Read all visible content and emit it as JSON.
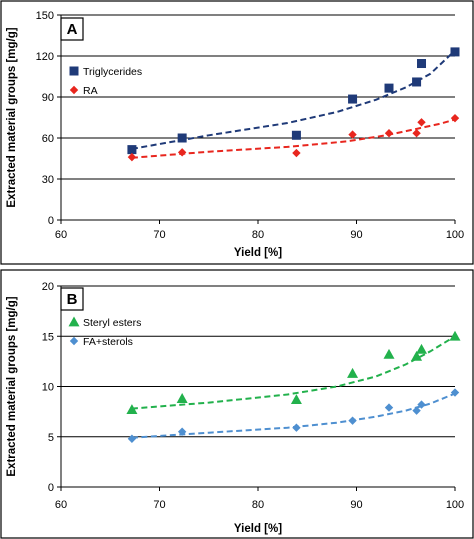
{
  "chart_data": [
    {
      "type": "scatter",
      "panel_label": "A",
      "xlabel": "Yield [%]",
      "ylabel": "Extracted material groups [mg/g]",
      "xlim": [
        60,
        100
      ],
      "ylim": [
        0,
        150
      ],
      "xticks": [
        60,
        70,
        80,
        90,
        100
      ],
      "yticks": [
        0,
        30,
        60,
        90,
        120,
        150
      ],
      "grid": "horizontal",
      "legend": "top-left",
      "series": [
        {
          "name": "Triglycerides",
          "marker": "square",
          "color": "#1f3a78",
          "x": [
            67.2,
            72.3,
            83.9,
            89.6,
            93.3,
            96.1,
            96.6,
            100
          ],
          "y": [
            51.5,
            60,
            62,
            88.5,
            96.5,
            101,
            114.5,
            123
          ],
          "trend": [
            [
              67.2,
              52
            ],
            [
              75,
              62
            ],
            [
              83,
              71
            ],
            [
              88,
              79
            ],
            [
              92,
              88
            ],
            [
              95,
              97
            ],
            [
              97.5,
              107
            ],
            [
              100,
              124
            ]
          ]
        },
        {
          "name": "RA",
          "marker": "diamond",
          "color": "#e8261e",
          "x": [
            67.2,
            72.3,
            83.9,
            89.6,
            93.3,
            96.1,
            96.6,
            100
          ],
          "y": [
            46,
            49.5,
            49,
            62.5,
            63.5,
            63.5,
            71.5,
            74.5
          ],
          "trend": [
            [
              67.2,
              45.5
            ],
            [
              75,
              50
            ],
            [
              83,
              53.5
            ],
            [
              89,
              57.5
            ],
            [
              93,
              62
            ],
            [
              96,
              66.5
            ],
            [
              98.5,
              70.5
            ],
            [
              100,
              73.5
            ]
          ]
        }
      ]
    },
    {
      "type": "scatter",
      "panel_label": "B",
      "xlabel": "Yield [%]",
      "ylabel": "Extracted material groups [mg/g]",
      "xlim": [
        60,
        100
      ],
      "ylim": [
        0,
        20
      ],
      "xticks": [
        60,
        70,
        80,
        90,
        100
      ],
      "yticks": [
        0,
        5,
        10,
        15,
        20
      ],
      "grid": "horizontal",
      "legend": "top-left",
      "series": [
        {
          "name": "Steryl esters",
          "marker": "triangle",
          "color": "#22b14c",
          "x": [
            67.2,
            72.3,
            83.9,
            89.6,
            93.3,
            96.1,
            96.6,
            100
          ],
          "y": [
            7.7,
            8.8,
            8.7,
            11.3,
            13.2,
            13,
            13.7,
            15
          ],
          "trend": [
            [
              67.2,
              7.8
            ],
            [
              75,
              8.4
            ],
            [
              83,
              9.2
            ],
            [
              88,
              10
            ],
            [
              92,
              11
            ],
            [
              95,
              12.2
            ],
            [
              97.5,
              13.5
            ],
            [
              100,
              15
            ]
          ]
        },
        {
          "name": "FA+sterols",
          "marker": "diamond",
          "color": "#4e8fd0",
          "x": [
            67.2,
            72.3,
            83.9,
            89.6,
            93.3,
            96.1,
            96.6,
            100
          ],
          "y": [
            4.8,
            5.5,
            5.9,
            6.6,
            7.9,
            7.6,
            8.2,
            9.4
          ],
          "trend": [
            [
              67.2,
              4.9
            ],
            [
              75,
              5.4
            ],
            [
              83,
              5.9
            ],
            [
              88,
              6.4
            ],
            [
              92,
              7
            ],
            [
              95,
              7.6
            ],
            [
              97.5,
              8.3
            ],
            [
              100,
              9.3
            ]
          ]
        }
      ]
    }
  ]
}
